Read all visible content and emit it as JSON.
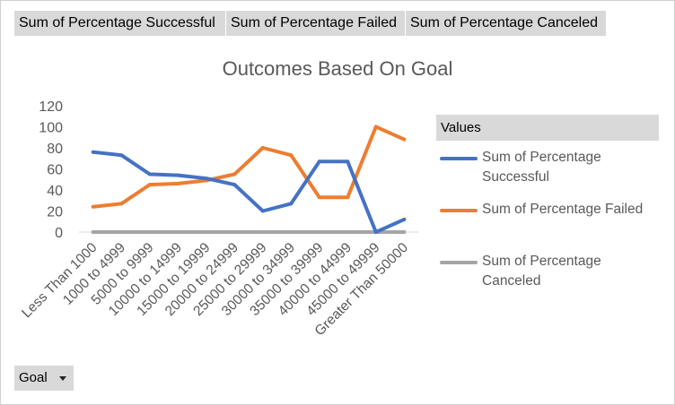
{
  "filter_buttons": [
    "Sum of Percentage  Successful",
    "Sum of Percentage  Failed",
    "Sum of Percentage  Canceled"
  ],
  "legend": {
    "header": "Values",
    "items": [
      {
        "label": "Sum of Percentage Successful",
        "color": "#4472c4"
      },
      {
        "label": "Sum of Percentage Failed",
        "color": "#ed7d31"
      },
      {
        "label": "Sum of Percentage Canceled",
        "color": "#a5a5a5"
      }
    ]
  },
  "goal_button": {
    "label": "Goal"
  },
  "chart_data": {
    "type": "line",
    "title": "Outcomes Based On Goal",
    "xlabel": "",
    "ylabel": "",
    "ylim": [
      0,
      120
    ],
    "yticks": [
      0,
      20,
      40,
      60,
      80,
      100,
      120
    ],
    "grid": false,
    "legend_position": "right",
    "categories": [
      "Less Than 1000",
      "1000 to 4999",
      "5000 to 9999",
      "10000 to 14999",
      "15000 to 19999",
      "20000 to 24999",
      "25000 to 29999",
      "30000 to 34999",
      "35000 to 39999",
      "40000 to 44999",
      "45000 to 49999",
      "Greater Than 50000"
    ],
    "series": [
      {
        "name": "Sum of Percentage Successful",
        "color": "#4472c4",
        "values": [
          76,
          73,
          55,
          54,
          51,
          45,
          20,
          27,
          67,
          67,
          0,
          12
        ]
      },
      {
        "name": "Sum of Percentage Failed",
        "color": "#ed7d31",
        "values": [
          24,
          27,
          45,
          46,
          49,
          55,
          80,
          73,
          33,
          33,
          100,
          88
        ]
      },
      {
        "name": "Sum of Percentage Canceled",
        "color": "#a5a5a5",
        "values": [
          0,
          0,
          0,
          0,
          0,
          0,
          0,
          0,
          0,
          0,
          0,
          0
        ]
      }
    ]
  }
}
